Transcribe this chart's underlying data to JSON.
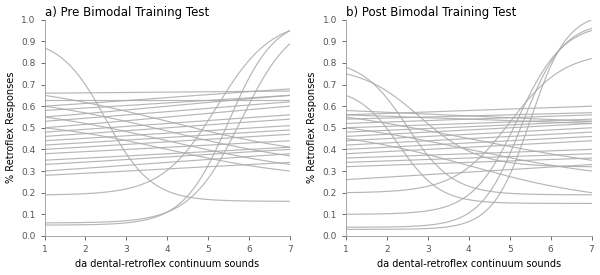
{
  "title_a": "a) Pre Bimodal Training Test",
  "title_b": "b) Post Bimodal Training Test",
  "xlabel": "da dental-retroflex continuum sounds",
  "ylabel": "% Retroflex Responses",
  "xlim": [
    1,
    7
  ],
  "ylim": [
    0.0,
    1.0
  ],
  "xticks": [
    1,
    2,
    3,
    4,
    5,
    6,
    7
  ],
  "yticks": [
    0.0,
    0.1,
    0.2,
    0.3,
    0.4,
    0.5,
    0.6,
    0.7,
    0.8,
    0.9,
    1.0
  ],
  "line_color": "#aaaaaa",
  "line_alpha": 0.85,
  "line_width": 0.85,
  "participants_pre": [
    [
      0.05,
      0.95,
      1.8,
      5.5
    ],
    [
      0.06,
      0.89,
      1.6,
      5.8
    ],
    [
      0.19,
      0.95,
      1.5,
      5.2
    ],
    [
      0.87,
      0.16,
      -1.8,
      2.5
    ],
    [
      0.66,
      0.67,
      0.05,
      4.0
    ],
    [
      0.63,
      0.63,
      0.02,
      4.0
    ],
    [
      0.6,
      0.68,
      0.25,
      4.0
    ],
    [
      0.58,
      0.65,
      0.2,
      4.0
    ],
    [
      0.55,
      0.65,
      0.3,
      4.0
    ],
    [
      0.53,
      0.62,
      0.25,
      4.0
    ],
    [
      0.5,
      0.6,
      0.25,
      4.0
    ],
    [
      0.48,
      0.56,
      0.2,
      4.0
    ],
    [
      0.46,
      0.54,
      0.2,
      4.0
    ],
    [
      0.44,
      0.51,
      0.2,
      4.0
    ],
    [
      0.42,
      0.49,
      0.2,
      4.0
    ],
    [
      0.4,
      0.47,
      0.2,
      4.0
    ],
    [
      0.38,
      0.44,
      0.2,
      4.0
    ],
    [
      0.35,
      0.41,
      0.2,
      4.0
    ],
    [
      0.33,
      0.4,
      0.2,
      4.0
    ],
    [
      0.3,
      0.38,
      0.2,
      4.0
    ],
    [
      0.28,
      0.34,
      0.2,
      4.0
    ],
    [
      0.65,
      0.41,
      -0.5,
      4.0
    ],
    [
      0.6,
      0.37,
      -0.5,
      4.0
    ],
    [
      0.55,
      0.33,
      -0.5,
      4.0
    ],
    [
      0.5,
      0.3,
      -0.6,
      4.0
    ]
  ],
  "participants_post": [
    [
      0.03,
      1.0,
      2.2,
      5.5
    ],
    [
      0.04,
      0.96,
      2.0,
      5.3
    ],
    [
      0.1,
      0.95,
      1.8,
      5.2
    ],
    [
      0.2,
      0.82,
      1.5,
      5.0
    ],
    [
      0.78,
      0.19,
      -1.8,
      2.5
    ],
    [
      0.75,
      0.32,
      -1.4,
      2.8
    ],
    [
      0.65,
      0.15,
      -2.0,
      2.3
    ],
    [
      0.58,
      0.53,
      -0.15,
      4.0
    ],
    [
      0.56,
      0.52,
      -0.1,
      4.0
    ],
    [
      0.56,
      0.6,
      0.15,
      4.0
    ],
    [
      0.54,
      0.57,
      0.1,
      4.0
    ],
    [
      0.52,
      0.56,
      0.1,
      4.0
    ],
    [
      0.5,
      0.54,
      0.1,
      4.0
    ],
    [
      0.48,
      0.53,
      0.1,
      4.0
    ],
    [
      0.46,
      0.52,
      0.1,
      4.0
    ],
    [
      0.44,
      0.5,
      0.1,
      4.0
    ],
    [
      0.42,
      0.48,
      0.1,
      4.0
    ],
    [
      0.4,
      0.46,
      0.1,
      4.0
    ],
    [
      0.38,
      0.44,
      0.1,
      4.0
    ],
    [
      0.36,
      0.4,
      0.1,
      4.0
    ],
    [
      0.34,
      0.38,
      0.1,
      4.0
    ],
    [
      0.32,
      0.36,
      0.1,
      4.0
    ],
    [
      0.26,
      0.33,
      0.1,
      4.0
    ],
    [
      0.55,
      0.35,
      -0.4,
      4.0
    ],
    [
      0.5,
      0.3,
      -0.5,
      4.0
    ],
    [
      0.45,
      0.2,
      -0.6,
      4.0
    ]
  ],
  "background_color": "#ffffff",
  "fig_width": 6.0,
  "fig_height": 2.75,
  "dpi": 100
}
